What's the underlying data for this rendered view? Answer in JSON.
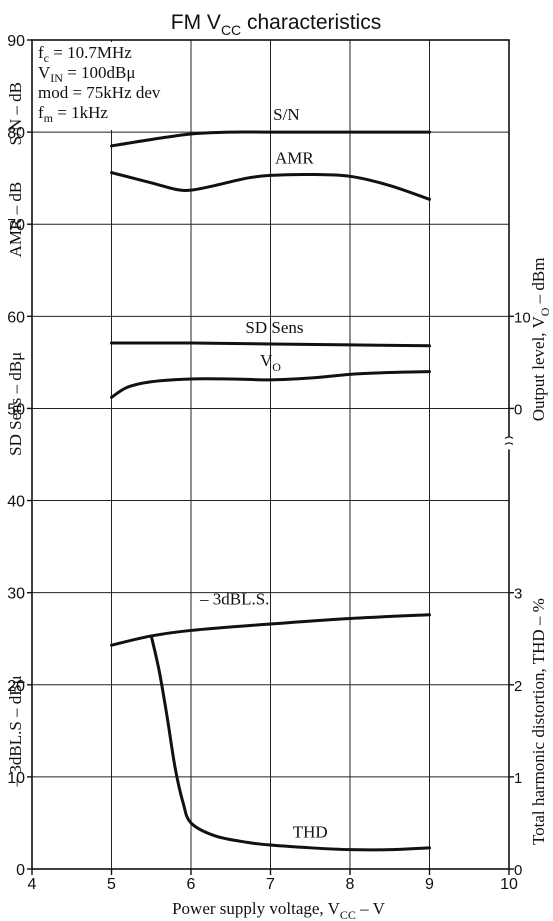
{
  "chart_data": {
    "type": "line",
    "title": "FM V",
    "title_sub": "CC",
    "title_tail": " characteristics",
    "xlabel": "Power supply voltage, V",
    "xlabel_sub": "CC",
    "xlabel_tail": " – V",
    "xlim": [
      4,
      10
    ],
    "x_ticks": [
      "4",
      "5",
      "6",
      "7",
      "8",
      "9",
      "10"
    ],
    "ylim_left": [
      0,
      90
    ],
    "y_ticks_left": [
      "0",
      "10",
      "20",
      "30",
      "40",
      "50",
      "60",
      "70",
      "80",
      "90"
    ],
    "grid": true,
    "left_axis_labels": [
      "S/N  –  dB",
      "AMR  –  dB",
      "SD Sens  –  dBμ",
      "– 3dBL.S  –  dBμ"
    ],
    "right_axis_labels": {
      "output_prefix": "Output level, V",
      "output_sub": "O",
      "output_tail": " – dBm",
      "thd": "Total harmonic distortion, THD – %"
    },
    "right_ticks_output": [
      {
        "label": "10",
        "at_left": 60
      },
      {
        "label": "0",
        "at_left": 50
      }
    ],
    "right_ticks_thd": [
      {
        "label": "3",
        "at_left": 30
      },
      {
        "label": "2",
        "at_left": 20
      },
      {
        "label": "1",
        "at_left": 10
      },
      {
        "label": "0",
        "at_left": 0
      }
    ],
    "conditions": [
      {
        "main": "f",
        "sub": "c",
        "tail": " = 10.7MHz"
      },
      {
        "main": "V",
        "sub": "IN",
        "tail": " = 100dBμ"
      },
      {
        "main": "mod = 75kHz dev",
        "sub": "",
        "tail": ""
      },
      {
        "main": "f",
        "sub": "m",
        "tail": " = 1kHz"
      }
    ],
    "series": [
      {
        "name": "S/N",
        "x": [
          5,
          5.5,
          6,
          6.5,
          7,
          8,
          9
        ],
        "y": [
          78.5,
          79.2,
          79.8,
          80.0,
          80.0,
          80.0,
          80.0
        ],
        "label_at": [
          7.2,
          81.3
        ]
      },
      {
        "name": "AMR",
        "x": [
          5,
          5.5,
          5.8,
          6,
          6.3,
          6.7,
          7,
          7.5,
          8,
          8.5,
          9
        ],
        "y": [
          75.6,
          74.5,
          73.8,
          73.7,
          74.2,
          75.0,
          75.3,
          75.4,
          75.2,
          74.2,
          72.7
        ],
        "label_at": [
          7.3,
          76.6
        ]
      },
      {
        "name": "SD Sens",
        "x": [
          5,
          6,
          7,
          8,
          9
        ],
        "y": [
          57.1,
          57.1,
          57.0,
          56.9,
          56.8
        ],
        "label_at": [
          7.05,
          58.2
        ]
      },
      {
        "name": "V",
        "name_sub": "O",
        "x": [
          5,
          5.2,
          5.5,
          6,
          6.5,
          7,
          7.5,
          8,
          8.5,
          9
        ],
        "y": [
          51.2,
          52.3,
          52.9,
          53.2,
          53.2,
          53.1,
          53.3,
          53.7,
          53.9,
          54.0
        ],
        "label_at": [
          7.0,
          54.6
        ]
      },
      {
        "name": "– 3dBL.S.",
        "x": [
          5,
          5.5,
          6,
          7,
          8,
          9
        ],
        "y": [
          24.3,
          25.3,
          25.9,
          26.6,
          27.2,
          27.6
        ],
        "label_at": [
          6.55,
          28.7
        ]
      },
      {
        "name": "THD",
        "x": [
          5.5,
          5.6,
          5.7,
          5.8,
          5.9,
          6,
          6.3,
          6.7,
          7,
          7.5,
          8,
          8.5,
          9
        ],
        "y": [
          25.3,
          21.5,
          16.5,
          11.0,
          7.2,
          5.0,
          3.6,
          2.9,
          2.6,
          2.3,
          2.1,
          2.1,
          2.3
        ],
        "label_at": [
          7.5,
          3.4
        ]
      }
    ]
  }
}
